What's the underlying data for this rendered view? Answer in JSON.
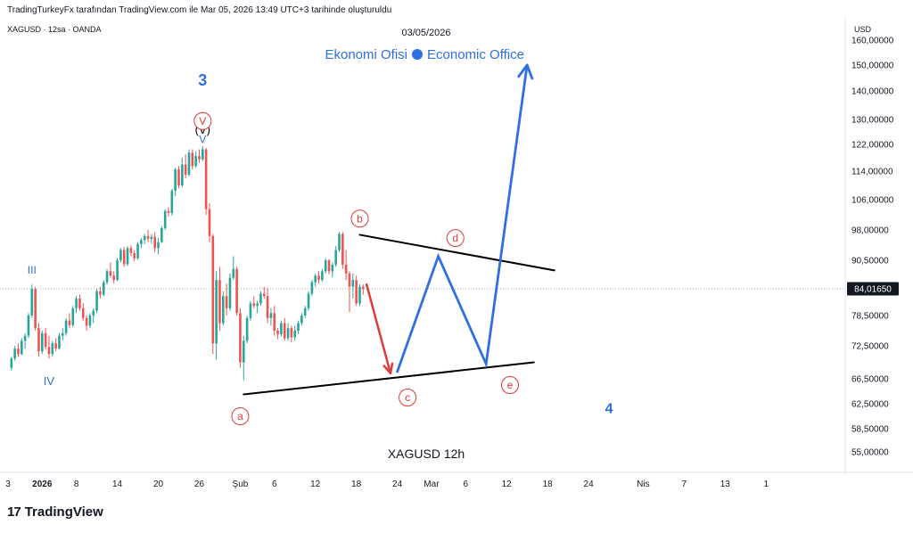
{
  "header": {
    "caption": "TradingTurkeyFx tarafından TradingView.com ile Mar 05, 2026 13:49 UTC+3 tarihinde oluşturuldu",
    "symbol_line": "XAGUSD · 12sa · OANDA"
  },
  "brand": {
    "logo": "17",
    "name": "TradingView"
  },
  "chart_data": {
    "type": "candlestick",
    "date_label": "03/05/2026",
    "watermark_left": "Ekonomi Ofisi",
    "watermark_right": "Economic Office",
    "footer_label": "XAGUSD   12h",
    "currency": "USD",
    "last_price": "84,01650",
    "colors": {
      "up": "#26a69a",
      "down": "#ef5350",
      "blue": "#2962ff",
      "wave_blue": "#2f6fe0",
      "red": "#e03a3a",
      "black": "#000000"
    },
    "ylim": [
      50,
      165
    ],
    "y_ticks": [
      "55,00000",
      "58,50000",
      "62,50000",
      "66,50000",
      "72,50000",
      "78,50000",
      "84,01650",
      "90,50000",
      "98,00000",
      "106,00000",
      "114,00000",
      "122,00000",
      "130,00000",
      "140,00000",
      "150,00000",
      "160,00000"
    ],
    "y_tick_values": [
      55,
      58.5,
      62.5,
      66.5,
      72.5,
      78.5,
      84.0165,
      90.5,
      98,
      106,
      114,
      122,
      130,
      140,
      150,
      160
    ],
    "x_ticks": [
      {
        "label": "3",
        "t": 0
      },
      {
        "label": "2026",
        "t": 10,
        "bold": true
      },
      {
        "label": "8",
        "t": 20
      },
      {
        "label": "14",
        "t": 32
      },
      {
        "label": "20",
        "t": 44
      },
      {
        "label": "26",
        "t": 56
      },
      {
        "label": "Şub",
        "t": 68
      },
      {
        "label": "6",
        "t": 78
      },
      {
        "label": "12",
        "t": 90
      },
      {
        "label": "18",
        "t": 102
      },
      {
        "label": "24",
        "t": 114
      },
      {
        "label": "Mar",
        "t": 124
      },
      {
        "label": "6",
        "t": 134
      },
      {
        "label": "12",
        "t": 146
      },
      {
        "label": "18",
        "t": 158
      },
      {
        "label": "24",
        "t": 170
      },
      {
        "label": "Nis",
        "t": 186
      },
      {
        "label": "7",
        "t": 198
      },
      {
        "label": "13",
        "t": 210
      },
      {
        "label": "1",
        "t": 222
      }
    ],
    "candles": [
      [
        1,
        68.5,
        70.5,
        68,
        70.2
      ],
      [
        2,
        70.2,
        72.5,
        69.8,
        72
      ],
      [
        3,
        72,
        73,
        70.5,
        71
      ],
      [
        4,
        71,
        74,
        70.8,
        73.5
      ],
      [
        5,
        73.5,
        75,
        72,
        74.5
      ],
      [
        6,
        74.5,
        79,
        74,
        78.5
      ],
      [
        7,
        78.5,
        85,
        78,
        84
      ],
      [
        8,
        84,
        84.5,
        75.5,
        76
      ],
      [
        9,
        76,
        77,
        70.5,
        71.5
      ],
      [
        10,
        71.5,
        75.5,
        71,
        75
      ],
      [
        11,
        75,
        76,
        71.8,
        72.3
      ],
      [
        12,
        72.3,
        74.5,
        70.2,
        71
      ],
      [
        13,
        71,
        73.5,
        70.5,
        73
      ],
      [
        14,
        73,
        74,
        71.5,
        72
      ],
      [
        15,
        72,
        75,
        71.8,
        74.5
      ],
      [
        16,
        74.5,
        76,
        73.5,
        75
      ],
      [
        17,
        75,
        78,
        74.5,
        77.5
      ],
      [
        18,
        77.5,
        79,
        76,
        76.6
      ],
      [
        19,
        76.6,
        80.5,
        76.2,
        80
      ],
      [
        20,
        80,
        82.5,
        79,
        82
      ],
      [
        21,
        82,
        82.8,
        79.5,
        80
      ],
      [
        22,
        80,
        81,
        77.5,
        78
      ],
      [
        23,
        78,
        78.5,
        75.5,
        76.5
      ],
      [
        24,
        76.5,
        79,
        76,
        78.5
      ],
      [
        25,
        78.5,
        80,
        77,
        79.5
      ],
      [
        26,
        79.5,
        84,
        79,
        83.5
      ],
      [
        27,
        83.5,
        84.5,
        82,
        82.8
      ],
      [
        28,
        82.8,
        86,
        82.5,
        85.5
      ],
      [
        29,
        85.5,
        88.5,
        85,
        88
      ],
      [
        30,
        88,
        90,
        86.5,
        87
      ],
      [
        31,
        87,
        88,
        85.2,
        86
      ],
      [
        32,
        86,
        91,
        85.8,
        90.5
      ],
      [
        33,
        90.5,
        93.5,
        90,
        93
      ],
      [
        34,
        93,
        93.8,
        89,
        89.6
      ],
      [
        35,
        89.6,
        94,
        89.2,
        93.5
      ],
      [
        36,
        93.5,
        94.2,
        91.5,
        92.3
      ],
      [
        37,
        92.3,
        93,
        90.3,
        91
      ],
      [
        38,
        91,
        95,
        90.6,
        94.5
      ],
      [
        39,
        94.5,
        96,
        93.5,
        95.5
      ],
      [
        40,
        95.5,
        97,
        94.5,
        96.5
      ],
      [
        41,
        96.5,
        98,
        95,
        95.8
      ],
      [
        42,
        95.8,
        97,
        94.6,
        96.3
      ],
      [
        43,
        96.3,
        97.5,
        92.5,
        93.5
      ],
      [
        44,
        93.5,
        96,
        92,
        95
      ],
      [
        45,
        95,
        99,
        94.8,
        98.5
      ],
      [
        46,
        98.5,
        103.5,
        98,
        103
      ],
      [
        47,
        103,
        104,
        101.5,
        102.5
      ],
      [
        48,
        102.5,
        109,
        101.8,
        108.5
      ],
      [
        49,
        108.5,
        115,
        107,
        114.5
      ],
      [
        50,
        114.5,
        115.5,
        109.2,
        110
      ],
      [
        51,
        110,
        118,
        109.5,
        116
      ],
      [
        52,
        116,
        119,
        112,
        113
      ],
      [
        53,
        113,
        120.5,
        112.5,
        119.5
      ],
      [
        54,
        119.5,
        120.5,
        114.5,
        115.5
      ],
      [
        55,
        115.5,
        120,
        115,
        118.5
      ],
      [
        56,
        118.5,
        120.5,
        116.5,
        117.5
      ],
      [
        57,
        117.5,
        121.5,
        117,
        120.5
      ],
      [
        58,
        120.5,
        121,
        102,
        103.5
      ],
      [
        59,
        103.5,
        105,
        95,
        96.5
      ],
      [
        60,
        96.5,
        97,
        71,
        73
      ],
      [
        61,
        73,
        88,
        70,
        86
      ],
      [
        62,
        86,
        89,
        75.5,
        77
      ],
      [
        63,
        77,
        83.5,
        76.5,
        82.5
      ],
      [
        64,
        82.5,
        85.2,
        78.5,
        80
      ],
      [
        65,
        80,
        87.5,
        79.5,
        86.5
      ],
      [
        66,
        86.5,
        91.5,
        86,
        88.5
      ],
      [
        67,
        88.5,
        89,
        78.5,
        79
      ],
      [
        68,
        79,
        80,
        68.5,
        69.5
      ],
      [
        69,
        69.5,
        74.5,
        66.3,
        73.5
      ],
      [
        70,
        73.5,
        78.5,
        73,
        78
      ],
      [
        71,
        78,
        81.5,
        77.5,
        81
      ],
      [
        72,
        81,
        82.5,
        80,
        80.5
      ],
      [
        73,
        80.5,
        81.5,
        79,
        81
      ],
      [
        74,
        81,
        83.5,
        80.5,
        83
      ],
      [
        75,
        83,
        84.5,
        82,
        82.5
      ],
      [
        76,
        82.5,
        84.2,
        77,
        78
      ],
      [
        77,
        78,
        80,
        76.5,
        79
      ],
      [
        78,
        79,
        80.5,
        74.5,
        75.5
      ],
      [
        79,
        75.5,
        76,
        73.8,
        74.8
      ],
      [
        80,
        74.8,
        77.5,
        74.3,
        77
      ],
      [
        81,
        77,
        78,
        73.5,
        74
      ],
      [
        82,
        74,
        77,
        73.5,
        76
      ],
      [
        83,
        76,
        76.5,
        73.2,
        74.2
      ],
      [
        84,
        74.2,
        76.5,
        73.5,
        75.5
      ],
      [
        85,
        75.5,
        77.5,
        74.8,
        77
      ],
      [
        86,
        77,
        79,
        76.5,
        78.5
      ],
      [
        87,
        78.5,
        80.5,
        78,
        80
      ],
      [
        88,
        80,
        83.5,
        79.5,
        83
      ],
      [
        89,
        83,
        86,
        82.5,
        85.5
      ],
      [
        90,
        85.5,
        87.5,
        84.5,
        87
      ],
      [
        91,
        87,
        88,
        85.2,
        86
      ],
      [
        92,
        86,
        88.5,
        85.6,
        88
      ],
      [
        93,
        88,
        91,
        87.5,
        90.5
      ],
      [
        94,
        90.5,
        90.8,
        87.3,
        88
      ],
      [
        95,
        88,
        90,
        86.6,
        89.5
      ],
      [
        96,
        89.5,
        94,
        89,
        93
      ],
      [
        97,
        93,
        97.5,
        92.5,
        97
      ],
      [
        98,
        97,
        97.5,
        88.5,
        89.5
      ],
      [
        99,
        89.5,
        93,
        86,
        87.5
      ],
      [
        100,
        87.5,
        88,
        79.2,
        84.5
      ],
      [
        101,
        84.5,
        87.5,
        82,
        86
      ],
      [
        102,
        86,
        87,
        80.5,
        81
      ],
      [
        103,
        81,
        85,
        80.5,
        84.5
      ],
      [
        104,
        84.5,
        85,
        82.8,
        84.0165
      ]
    ],
    "wave_labels": [
      {
        "text": "3",
        "t": 57,
        "v": 142,
        "color": "#2f6fe0",
        "size": 18,
        "bold": true
      },
      {
        "text": "(V)",
        "t": 57,
        "v": 125.5,
        "color": "#000000",
        "size": 13
      },
      {
        "text": "V",
        "t": 57,
        "v": 122.5,
        "color": "#2f6fe0",
        "size": 12
      },
      {
        "text": "III",
        "t": 7,
        "v": 87.5,
        "color": "#2f6fe0",
        "size": 12
      },
      {
        "text": "IV",
        "t": 12,
        "v": 65.5,
        "color": "#2f6fe0",
        "size": 13
      },
      {
        "text": "4",
        "t": 176,
        "v": 61,
        "color": "#2f6fe0",
        "size": 16,
        "bold": true
      }
    ],
    "circle_labels": [
      {
        "text": "V",
        "t": 57,
        "v": 129.5
      },
      {
        "text": "a",
        "t": 68,
        "v": 60.5
      },
      {
        "text": "b",
        "t": 103,
        "v": 101
      },
      {
        "text": "c",
        "t": 117,
        "v": 63.5
      },
      {
        "text": "d",
        "t": 131,
        "v": 96
      },
      {
        "text": "e",
        "t": 147,
        "v": 65.5
      }
    ],
    "triangle_upper": [
      [
        103,
        96.8
      ],
      [
        160,
        88.2
      ]
    ],
    "triangle_lower": [
      [
        69,
        64
      ],
      [
        154,
        69.5
      ]
    ],
    "red_path": [
      [
        105,
        85
      ],
      [
        112,
        67.5
      ]
    ],
    "blue_path": [
      [
        114,
        67.8
      ],
      [
        126,
        91.5
      ],
      [
        140,
        69.2
      ],
      [
        152,
        150
      ]
    ],
    "blue_path_end_arrow": true,
    "dotted_level": 84.0165
  }
}
